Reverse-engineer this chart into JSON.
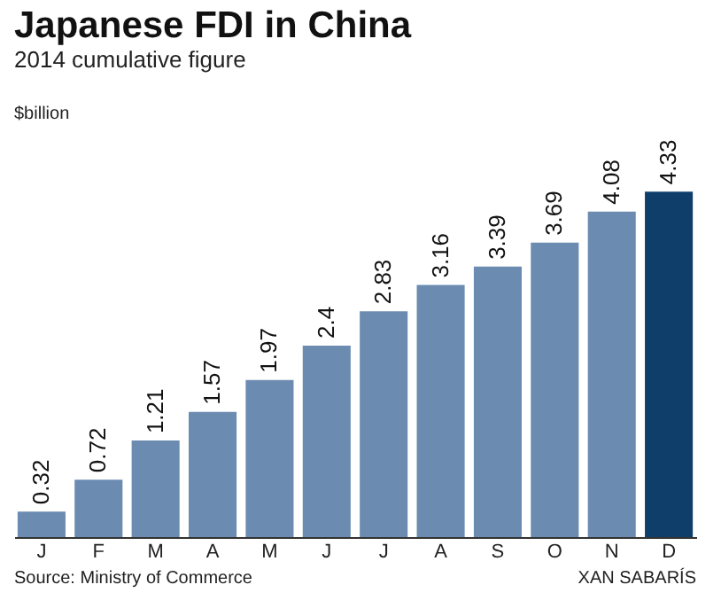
{
  "chart_data": {
    "type": "bar",
    "title": "Japanese FDI in China",
    "subtitle": "2014 cumulative figure",
    "ylabel": "$billion",
    "categories": [
      "J",
      "F",
      "M",
      "A",
      "M",
      "J",
      "J",
      "A",
      "S",
      "O",
      "N",
      "D"
    ],
    "values": [
      0.32,
      0.72,
      1.21,
      1.57,
      1.97,
      2.4,
      2.83,
      3.16,
      3.39,
      3.69,
      4.08,
      4.33
    ],
    "colors": [
      "#6b8bb0",
      "#6b8bb0",
      "#6b8bb0",
      "#6b8bb0",
      "#6b8bb0",
      "#6b8bb0",
      "#6b8bb0",
      "#6b8bb0",
      "#6b8bb0",
      "#6b8bb0",
      "#6b8bb0",
      "#0f3e6b"
    ],
    "data_labels": true,
    "annotations": [
      "Source: Ministry of Commerce",
      "XAN SABARÍS"
    ]
  }
}
